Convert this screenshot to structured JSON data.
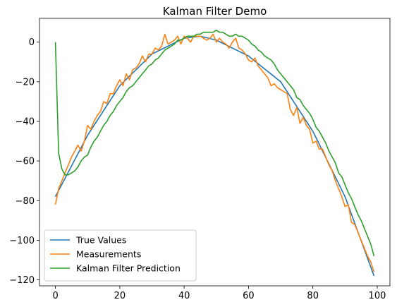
{
  "chart_data": {
    "type": "line",
    "title": "Kalman Filter Demo",
    "xlabel": "",
    "ylabel": "",
    "xlim": [
      -4.95,
      103.95
    ],
    "ylim": [
      -123,
      12
    ],
    "xticks": [
      0,
      20,
      40,
      60,
      80,
      100
    ],
    "yticks": [
      0,
      -20,
      -40,
      -60,
      -80,
      -100,
      -120
    ],
    "xtick_labels": [
      "0",
      "20",
      "40",
      "60",
      "80",
      "100"
    ],
    "ytick_labels": [
      "0",
      "−20",
      "−40",
      "−60",
      "−80",
      "−100",
      "−120"
    ],
    "grid": false,
    "legend_position": "lower-left",
    "series": [
      {
        "name": "True Values",
        "color": "#1f77b4",
        "x": [
          0,
          10,
          20,
          30,
          40,
          45,
          50,
          60,
          70,
          80,
          90,
          99
        ],
        "y": [
          -78,
          -47,
          -22,
          -6,
          2,
          3,
          1,
          -7,
          -20,
          -45,
          -78,
          -118
        ]
      },
      {
        "name": "Measurements",
        "color": "#ff7f0e",
        "x": [
          0,
          1,
          2,
          3,
          4,
          5,
          6,
          7,
          8,
          9,
          10,
          11,
          12,
          13,
          14,
          15,
          16,
          17,
          18,
          19,
          20,
          21,
          22,
          23,
          24,
          25,
          26,
          27,
          28,
          29,
          30,
          31,
          32,
          33,
          34,
          35,
          36,
          37,
          38,
          39,
          40,
          41,
          42,
          43,
          44,
          45,
          46,
          47,
          48,
          49,
          50,
          51,
          52,
          53,
          54,
          55,
          56,
          57,
          58,
          59,
          60,
          61,
          62,
          63,
          64,
          65,
          66,
          67,
          68,
          69,
          70,
          71,
          72,
          73,
          74,
          75,
          76,
          77,
          78,
          79,
          80,
          81,
          82,
          83,
          84,
          85,
          86,
          87,
          88,
          89,
          90,
          91,
          92,
          93,
          94,
          95,
          96,
          97,
          98,
          99
        ],
        "y": [
          -82,
          -74,
          -70,
          -66,
          -62,
          -58,
          -55,
          -52,
          -55,
          -50,
          -42,
          -44,
          -40,
          -37,
          -35,
          -30,
          -31,
          -26,
          -26,
          -22,
          -19,
          -22,
          -16,
          -19,
          -14,
          -13,
          -11,
          -7,
          -10,
          -6,
          -6,
          -3,
          -4,
          -2,
          4,
          -1,
          0,
          1,
          3,
          -1,
          3,
          2,
          0,
          3,
          3,
          3,
          2,
          1,
          2,
          4,
          0,
          2,
          0,
          -1,
          -3,
          0,
          2,
          -3,
          -4,
          -6,
          -9,
          -10,
          -8,
          -12,
          -14,
          -16,
          -18,
          -22,
          -21,
          -23,
          -24,
          -25,
          -26,
          -34,
          -37,
          -33,
          -41,
          -38,
          -42,
          -44,
          -51,
          -50,
          -54,
          -54,
          -58,
          -62,
          -65,
          -70,
          -74,
          -78,
          -83,
          -82,
          -91,
          -92,
          -96,
          -100,
          -104,
          -108,
          -111,
          -116
        ]
      },
      {
        "name": "Kalman Filter Prediction",
        "color": "#2ca02c",
        "x": [
          0,
          1,
          2,
          3,
          4,
          5,
          6,
          7,
          8,
          9,
          10,
          11,
          12,
          13,
          14,
          15,
          16,
          17,
          18,
          19,
          20,
          21,
          22,
          23,
          24,
          25,
          26,
          27,
          28,
          29,
          30,
          31,
          32,
          33,
          34,
          35,
          36,
          37,
          38,
          39,
          40,
          41,
          42,
          43,
          44,
          45,
          46,
          47,
          48,
          49,
          50,
          51,
          52,
          53,
          54,
          55,
          56,
          57,
          58,
          59,
          60,
          61,
          62,
          63,
          64,
          65,
          66,
          67,
          68,
          69,
          70,
          71,
          72,
          73,
          74,
          75,
          76,
          77,
          78,
          79,
          80,
          81,
          82,
          83,
          84,
          85,
          86,
          87,
          88,
          89,
          90,
          91,
          92,
          93,
          94,
          95,
          96,
          97,
          98,
          99
        ],
        "y": [
          0,
          -56,
          -64,
          -67,
          -67,
          -66,
          -65,
          -63,
          -60,
          -58,
          -57,
          -53,
          -50,
          -48,
          -45,
          -42,
          -40,
          -37,
          -35,
          -32,
          -30,
          -28,
          -25,
          -23,
          -22,
          -20,
          -18,
          -16,
          -14,
          -12,
          -11,
          -9,
          -8,
          -6,
          -4,
          -3,
          -2,
          -1,
          1,
          1,
          2,
          3,
          3,
          3,
          4,
          4,
          5,
          5,
          5,
          5,
          6,
          5,
          5,
          4,
          3,
          3,
          4,
          3,
          3,
          2,
          1,
          -1,
          -2,
          -4,
          -5,
          -7,
          -8,
          -9,
          -11,
          -14,
          -16,
          -18,
          -20,
          -22,
          -24,
          -28,
          -29,
          -32,
          -34,
          -36,
          -39,
          -43,
          -45,
          -48,
          -51,
          -55,
          -58,
          -61,
          -66,
          -68,
          -72,
          -76,
          -79,
          -83,
          -87,
          -90,
          -94,
          -98,
          -102,
          -108
        ]
      }
    ]
  }
}
